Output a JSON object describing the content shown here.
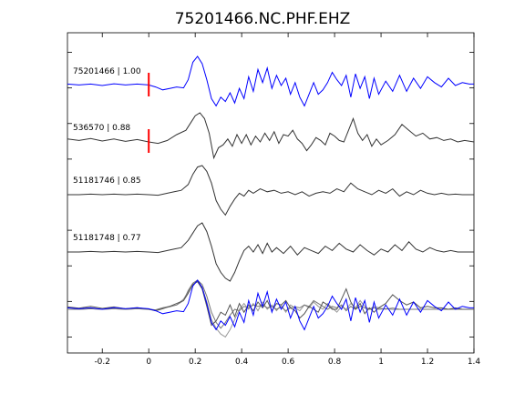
{
  "chart_data": {
    "type": "line",
    "title": "75201466.NC.PHF.EHZ",
    "xlim": [
      -0.35,
      1.4
    ],
    "xticks": [
      -0.2,
      0,
      0.2,
      0.4,
      0.6,
      0.8,
      1,
      1.2,
      1.4
    ],
    "xtick_labels": [
      "-0.2",
      "0",
      "0.2",
      "0.4",
      "0.6",
      "0.8",
      "1",
      "1.2",
      "1.4"
    ],
    "xlabel": "",
    "ylabel": "",
    "grid": false,
    "pick_time": 0,
    "colors": {
      "primary": "#0000ff",
      "secondary": "#333333",
      "overlay_gray": "#888888",
      "pick": "#ff0000"
    },
    "series": [
      {
        "name": "75201466 | 1.00",
        "color": "#0000ff",
        "pick": true,
        "x": [
          -0.35,
          -0.3,
          -0.25,
          -0.2,
          -0.15,
          -0.1,
          -0.05,
          0.0,
          0.03,
          0.06,
          0.09,
          0.12,
          0.15,
          0.17,
          0.19,
          0.21,
          0.23,
          0.25,
          0.27,
          0.29,
          0.31,
          0.33,
          0.35,
          0.37,
          0.39,
          0.41,
          0.43,
          0.45,
          0.47,
          0.49,
          0.51,
          0.53,
          0.55,
          0.57,
          0.59,
          0.61,
          0.63,
          0.65,
          0.67,
          0.69,
          0.71,
          0.73,
          0.75,
          0.77,
          0.79,
          0.81,
          0.83,
          0.85,
          0.87,
          0.89,
          0.91,
          0.93,
          0.95,
          0.97,
          0.99,
          1.02,
          1.05,
          1.08,
          1.11,
          1.14,
          1.17,
          1.2,
          1.23,
          1.26,
          1.29,
          1.32,
          1.35,
          1.38,
          1.4
        ],
        "y": [
          0.05,
          0.02,
          0.05,
          0.0,
          0.06,
          0.02,
          0.05,
          0.02,
          -0.05,
          -0.15,
          -0.1,
          -0.05,
          -0.08,
          0.2,
          0.8,
          1.0,
          0.75,
          0.2,
          -0.45,
          -0.7,
          -0.4,
          -0.55,
          -0.25,
          -0.6,
          -0.1,
          -0.45,
          0.3,
          -0.2,
          0.55,
          0.1,
          0.6,
          -0.1,
          0.35,
          0.0,
          0.25,
          -0.3,
          0.1,
          -0.4,
          -0.7,
          -0.3,
          0.1,
          -0.3,
          -0.15,
          0.1,
          0.45,
          0.2,
          0.0,
          0.35,
          -0.4,
          0.4,
          -0.1,
          0.3,
          -0.45,
          0.25,
          -0.3,
          0.15,
          -0.2,
          0.35,
          -0.2,
          0.25,
          -0.1,
          0.3,
          0.1,
          -0.05,
          0.25,
          0.0,
          0.1,
          0.05,
          0.05
        ]
      },
      {
        "name": "536570 | 0.88",
        "color": "#333333",
        "pick": true,
        "x": [
          -0.35,
          -0.3,
          -0.25,
          -0.2,
          -0.15,
          -0.1,
          -0.05,
          0.0,
          0.04,
          0.08,
          0.12,
          0.16,
          0.18,
          0.2,
          0.22,
          0.24,
          0.26,
          0.28,
          0.3,
          0.32,
          0.34,
          0.36,
          0.38,
          0.4,
          0.42,
          0.44,
          0.46,
          0.48,
          0.5,
          0.52,
          0.54,
          0.56,
          0.58,
          0.6,
          0.62,
          0.64,
          0.66,
          0.68,
          0.7,
          0.72,
          0.74,
          0.76,
          0.78,
          0.8,
          0.82,
          0.84,
          0.86,
          0.88,
          0.9,
          0.92,
          0.94,
          0.96,
          0.98,
          1.0,
          1.03,
          1.06,
          1.09,
          1.12,
          1.15,
          1.18,
          1.21,
          1.24,
          1.27,
          1.3,
          1.33,
          1.36,
          1.4
        ],
        "y": [
          0.1,
          0.05,
          0.12,
          0.03,
          0.1,
          0.02,
          0.08,
          0.0,
          -0.05,
          0.05,
          0.25,
          0.4,
          0.65,
          0.9,
          1.0,
          0.8,
          0.3,
          -0.55,
          -0.2,
          -0.1,
          0.1,
          -0.15,
          0.25,
          -0.05,
          0.25,
          -0.1,
          0.2,
          0.0,
          0.3,
          0.05,
          0.35,
          -0.05,
          0.25,
          0.2,
          0.4,
          0.1,
          -0.05,
          -0.3,
          -0.1,
          0.15,
          0.05,
          -0.1,
          0.3,
          0.2,
          0.05,
          0.0,
          0.4,
          0.8,
          0.3,
          0.05,
          0.25,
          -0.15,
          0.1,
          -0.1,
          0.05,
          0.25,
          0.6,
          0.4,
          0.2,
          0.3,
          0.1,
          0.15,
          0.05,
          0.1,
          0.0,
          0.05,
          0.0
        ]
      },
      {
        "name": "51181746 | 0.85",
        "color": "#333333",
        "pick": false,
        "x": [
          -0.35,
          -0.3,
          -0.25,
          -0.2,
          -0.15,
          -0.1,
          -0.05,
          0.0,
          0.04,
          0.08,
          0.11,
          0.14,
          0.17,
          0.19,
          0.21,
          0.23,
          0.25,
          0.27,
          0.29,
          0.31,
          0.33,
          0.35,
          0.37,
          0.39,
          0.41,
          0.43,
          0.45,
          0.48,
          0.51,
          0.54,
          0.57,
          0.6,
          0.63,
          0.66,
          0.69,
          0.72,
          0.75,
          0.78,
          0.81,
          0.84,
          0.87,
          0.9,
          0.93,
          0.96,
          0.99,
          1.02,
          1.05,
          1.08,
          1.11,
          1.14,
          1.17,
          1.2,
          1.23,
          1.26,
          1.29,
          1.32,
          1.35,
          1.4
        ],
        "y": [
          0.0,
          0.0,
          0.02,
          0.0,
          0.02,
          0.0,
          0.02,
          0.0,
          -0.02,
          0.05,
          0.1,
          0.15,
          0.35,
          0.7,
          0.95,
          1.0,
          0.8,
          0.4,
          -0.2,
          -0.5,
          -0.7,
          -0.4,
          -0.15,
          0.05,
          -0.05,
          0.15,
          0.05,
          0.2,
          0.1,
          0.15,
          0.05,
          0.1,
          0.0,
          0.1,
          -0.05,
          0.05,
          0.1,
          0.05,
          0.2,
          0.1,
          0.4,
          0.2,
          0.1,
          0.0,
          0.15,
          0.05,
          0.2,
          -0.05,
          0.1,
          0.0,
          0.15,
          0.05,
          0.0,
          0.05,
          0.0,
          0.02,
          0.0,
          0.0
        ]
      },
      {
        "name": "51181748 | 0.77",
        "color": "#333333",
        "pick": false,
        "x": [
          -0.35,
          -0.3,
          -0.25,
          -0.2,
          -0.15,
          -0.1,
          -0.05,
          0.0,
          0.04,
          0.08,
          0.11,
          0.14,
          0.17,
          0.19,
          0.21,
          0.23,
          0.25,
          0.27,
          0.29,
          0.31,
          0.33,
          0.35,
          0.37,
          0.39,
          0.41,
          0.43,
          0.45,
          0.47,
          0.49,
          0.51,
          0.53,
          0.55,
          0.58,
          0.61,
          0.64,
          0.67,
          0.7,
          0.73,
          0.76,
          0.79,
          0.82,
          0.85,
          0.88,
          0.91,
          0.94,
          0.97,
          1.0,
          1.03,
          1.06,
          1.09,
          1.12,
          1.15,
          1.18,
          1.21,
          1.24,
          1.27,
          1.3,
          1.33,
          1.36,
          1.4
        ],
        "y": [
          0.0,
          0.0,
          0.02,
          0.0,
          0.02,
          0.0,
          0.02,
          0.0,
          -0.02,
          0.05,
          0.1,
          0.15,
          0.4,
          0.65,
          0.9,
          1.0,
          0.7,
          0.2,
          -0.4,
          -0.7,
          -0.9,
          -1.0,
          -0.7,
          -0.3,
          0.05,
          0.2,
          0.0,
          0.25,
          -0.05,
          0.3,
          0.0,
          0.15,
          -0.05,
          0.2,
          -0.1,
          0.15,
          0.05,
          -0.05,
          0.2,
          0.05,
          0.3,
          0.1,
          0.0,
          0.25,
          0.05,
          -0.1,
          0.1,
          0.0,
          0.25,
          0.05,
          0.35,
          0.1,
          0.0,
          0.15,
          0.05,
          0.0,
          0.05,
          0.0,
          0.0,
          0.0
        ]
      }
    ],
    "overlay": {
      "x": [
        -0.35,
        -0.3,
        -0.25,
        -0.2,
        -0.15,
        -0.1,
        -0.05,
        0.0,
        0.03,
        0.06,
        0.09,
        0.12,
        0.15,
        0.17,
        0.19,
        0.21,
        0.23,
        0.25,
        0.27,
        0.29,
        0.31,
        0.33,
        0.35,
        0.37,
        0.39,
        0.41,
        0.43,
        0.45,
        0.47,
        0.49,
        0.51,
        0.53,
        0.55,
        0.57,
        0.59,
        0.61,
        0.63,
        0.65,
        0.67,
        0.69,
        0.71,
        0.73,
        0.75,
        0.77,
        0.79,
        0.81,
        0.83,
        0.85,
        0.87,
        0.89,
        0.91,
        0.93,
        0.95,
        0.97,
        0.99,
        1.02,
        1.05,
        1.08,
        1.11,
        1.14,
        1.17,
        1.2,
        1.23,
        1.26,
        1.29,
        1.32,
        1.35,
        1.38,
        1.4
      ],
      "series": [
        {
          "color": "#0000ff",
          "y": [
            0.05,
            0.02,
            0.05,
            0.0,
            0.06,
            0.02,
            0.05,
            0.02,
            -0.05,
            -0.15,
            -0.1,
            -0.05,
            -0.08,
            0.2,
            0.8,
            1.0,
            0.75,
            0.2,
            -0.45,
            -0.7,
            -0.4,
            -0.55,
            -0.25,
            -0.6,
            -0.1,
            -0.45,
            0.3,
            -0.2,
            0.55,
            0.1,
            0.6,
            -0.1,
            0.35,
            0.0,
            0.25,
            -0.3,
            0.1,
            -0.4,
            -0.7,
            -0.3,
            0.1,
            -0.3,
            -0.15,
            0.1,
            0.45,
            0.2,
            0.0,
            0.35,
            -0.4,
            0.4,
            -0.1,
            0.3,
            -0.45,
            0.25,
            -0.3,
            0.15,
            -0.2,
            0.35,
            -0.2,
            0.25,
            -0.1,
            0.3,
            0.1,
            -0.05,
            0.25,
            0.0,
            0.1,
            0.05,
            0.05
          ]
        },
        {
          "color": "#555555",
          "y": [
            0.08,
            0.04,
            0.1,
            0.03,
            0.08,
            0.02,
            0.06,
            0.0,
            -0.05,
            0.02,
            0.1,
            0.2,
            0.3,
            0.55,
            0.85,
            0.95,
            0.7,
            0.1,
            -0.55,
            -0.4,
            -0.1,
            -0.2,
            0.15,
            -0.25,
            0.2,
            -0.1,
            0.15,
            -0.05,
            0.25,
            0.05,
            0.3,
            -0.05,
            0.2,
            0.15,
            0.3,
            0.05,
            -0.05,
            -0.3,
            -0.15,
            0.1,
            0.0,
            -0.1,
            0.25,
            0.15,
            0.0,
            0.0,
            0.35,
            0.7,
            0.25,
            0.0,
            0.2,
            -0.15,
            0.05,
            -0.1,
            0.05,
            0.2,
            0.5,
            0.3,
            0.15,
            0.25,
            0.05,
            0.1,
            0.05,
            0.05,
            0.0,
            0.05,
            0.0,
            0.0,
            0.0
          ]
        },
        {
          "color": "#777777",
          "y": [
            0.0,
            0.0,
            0.02,
            0.0,
            0.02,
            0.0,
            0.02,
            0.0,
            -0.02,
            0.05,
            0.1,
            0.15,
            0.3,
            0.65,
            0.9,
            1.0,
            0.85,
            0.45,
            -0.1,
            -0.45,
            -0.65,
            -0.45,
            -0.2,
            0.0,
            -0.05,
            0.1,
            0.05,
            0.15,
            0.1,
            0.15,
            0.05,
            0.1,
            0.0,
            0.08,
            -0.05,
            0.05,
            0.08,
            0.05,
            0.15,
            0.1,
            0.3,
            0.2,
            0.1,
            0.0,
            0.1,
            0.05,
            0.15,
            -0.05,
            0.1,
            0.0,
            0.1,
            0.05,
            0.0,
            0.05,
            0.0,
            0.02,
            0.0,
            0.0,
            0.0,
            0.0,
            0.0,
            0.0,
            0.0,
            0.0,
            0.0,
            0.0,
            0.0,
            0.0,
            0.0
          ]
        },
        {
          "color": "#999999",
          "y": [
            0.0,
            0.0,
            0.02,
            0.0,
            0.02,
            0.0,
            0.02,
            0.0,
            -0.02,
            0.05,
            0.08,
            0.15,
            0.35,
            0.6,
            0.85,
            1.0,
            0.75,
            0.25,
            -0.35,
            -0.65,
            -0.85,
            -0.95,
            -0.7,
            -0.35,
            0.0,
            0.2,
            0.0,
            0.2,
            -0.05,
            0.25,
            0.0,
            0.15,
            -0.05,
            0.15,
            -0.1,
            0.15,
            0.05,
            -0.05,
            0.15,
            0.05,
            0.25,
            0.1,
            0.0,
            0.2,
            0.05,
            -0.1,
            0.1,
            0.0,
            0.2,
            0.05,
            0.3,
            0.1,
            0.0,
            0.1,
            0.05,
            0.0,
            0.05,
            0.0,
            0.0,
            0.0,
            0.0,
            0.0,
            0.0,
            0.0,
            0.0,
            0.0,
            0.0,
            0.0,
            0.0
          ]
        }
      ]
    }
  }
}
